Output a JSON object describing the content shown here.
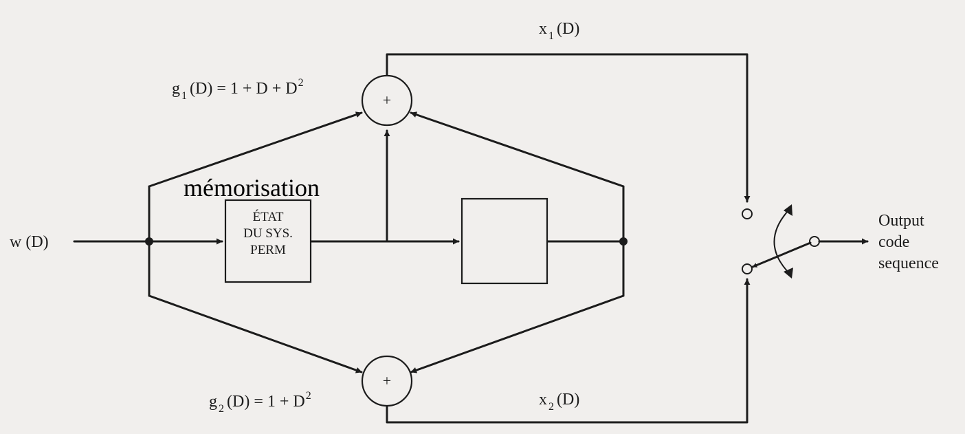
{
  "input": {
    "label": "w (D)"
  },
  "top_adder": {
    "symbol": "+",
    "poly": {
      "name": "g",
      "sub": "1",
      "expr": "(D) = 1 + D + D",
      "sup": "2"
    },
    "output": {
      "name": "x",
      "sub": "1",
      "arg": "(D)"
    }
  },
  "bottom_adder": {
    "symbol": "+",
    "poly": {
      "name": "g",
      "sub": "2",
      "expr": "(D) = 1 + D",
      "sup": "2"
    },
    "output": {
      "name": "x",
      "sub": "2",
      "arg": "(D)"
    }
  },
  "memory_label": "mémorisation",
  "state_box": {
    "line1": "ÉTAT",
    "line2": "DU SYS.",
    "line3": "PERM"
  },
  "output_label": {
    "line1": "Output",
    "line2": "code",
    "line3": "sequence"
  }
}
